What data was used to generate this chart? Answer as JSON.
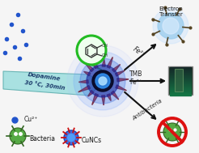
{
  "bg_color": "#f5f5f5",
  "dopamine_text_line1": "Dopamine",
  "dopamine_text_line2": "30 °C, 30min",
  "cu2_text": "Cu²⁺",
  "bacteria_text": "Bacteria",
  "cuncs_text": "CuNCs",
  "electron_transfer_text": "Electron\nTransfer",
  "fe2_text": "Fe²⁺",
  "tmb_text": "TMB",
  "fe3_text": "Fe³⁺",
  "antibacteria_text": "Antibacteria",
  "blue_dot_color": "#2255cc",
  "teal_light": "#99dddd",
  "teal_dark": "#55aaaa",
  "nano_glow1": "#1a90ff",
  "nano_glow2": "#0055cc",
  "nano_core": "#050520",
  "spike_color": "#cc1111",
  "green_ring": "#22bb22",
  "arrow_color": "#111111",
  "et_sphere": "#99ccee",
  "bact_green": "#55aa44",
  "bact_dark": "#336622",
  "red_no": "#dd1111",
  "tube_dark": "#1a3a1a",
  "tube_mid": "#2a5a2a",
  "tube_light": "#44aa44"
}
